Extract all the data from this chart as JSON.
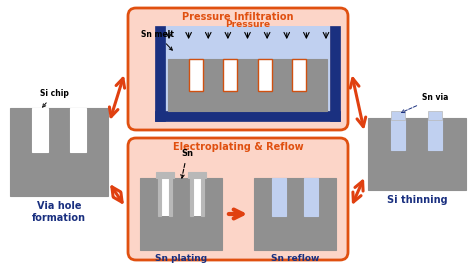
{
  "pink_box_color": "#fcd5c8",
  "pink_box_edge": "#e05010",
  "blue_dark": "#1a3080",
  "gray_chip": "#909090",
  "gray_light": "#b8b8b8",
  "blue_fill": "#c0d0f0",
  "orange_arrow": "#e04010",
  "blue_text": "#1a3080",
  "orange_text": "#e05010",
  "title_pressure": "Pressure Infiltration",
  "title_electro": "Electroplating & Reflow",
  "label_via": "Via hole\nformation",
  "label_si_thin": "Si thinning",
  "label_sn_plating": "Sn plating",
  "label_sn_reflow": "Sn reflow",
  "label_pressure": "Pressure",
  "label_sn_melt": "Sn melt",
  "label_si_chip": "Si chip",
  "label_sn_via": "Sn via",
  "label_sn": "Sn"
}
